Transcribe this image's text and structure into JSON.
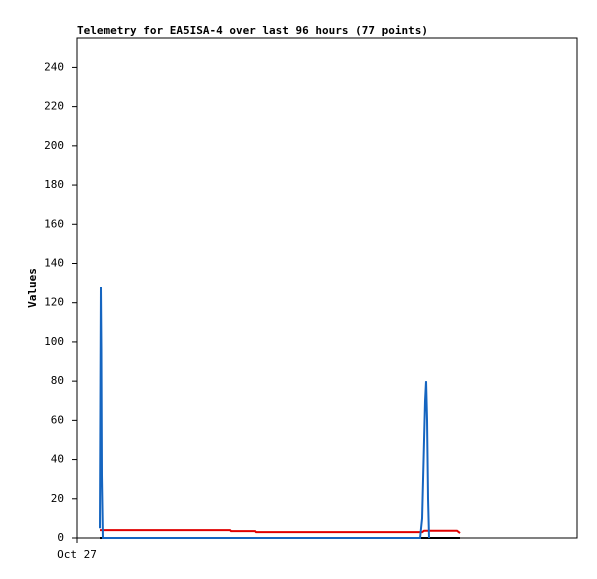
{
  "chart_data": {
    "type": "line",
    "title": "Telemetry for EA5ISA-4 over last 96 hours (77 points)",
    "y_label": "Values",
    "xlim": [
      0,
      100
    ],
    "xticks": [
      {
        "value": 0,
        "label": "Oct 27"
      }
    ],
    "ylim": [
      0,
      255
    ],
    "yticks": [
      0,
      20,
      40,
      60,
      80,
      100,
      120,
      140,
      160,
      180,
      200,
      220,
      240
    ],
    "grid": false,
    "series": [
      {
        "color": "#000000",
        "x": [
          4.6,
          76.6
        ],
        "values": [
          0,
          0
        ]
      },
      {
        "color": "#e00000",
        "x": [
          4.6,
          30.6,
          30.8,
          35.6,
          35.8,
          69.0,
          69.4,
          76.0,
          76.6
        ],
        "values": [
          4,
          4,
          3.5,
          3.5,
          3,
          3,
          3.7,
          3.7,
          2.5
        ]
      },
      {
        "color": "#1565c0",
        "x": [
          4.6,
          4.8,
          4.9,
          5.0,
          5.2,
          68.6,
          69.0,
          69.2,
          69.4,
          69.6,
          69.8,
          70.0,
          70.2,
          70.4
        ],
        "values": [
          5,
          128,
          96,
          32,
          0,
          0,
          10,
          30,
          50,
          70,
          80,
          60,
          20,
          0
        ]
      }
    ]
  }
}
